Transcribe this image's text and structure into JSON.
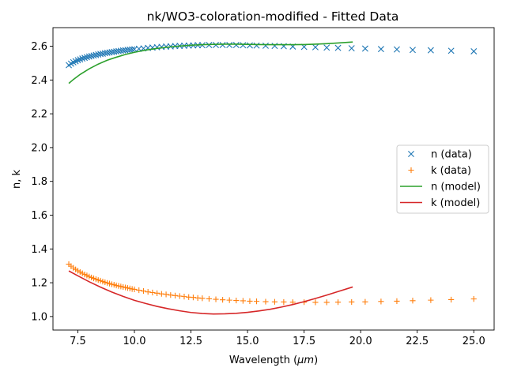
{
  "chart_data": {
    "type": "line",
    "title": "nk/WO3-coloration-modified - Fitted Data",
    "xlabel_prefix": "Wavelength (",
    "xlabel_unit": "μm",
    "xlabel_suffix": ")",
    "ylabel": "n, k",
    "xlim": [
      6.4,
      25.9
    ],
    "ylim": [
      0.92,
      2.71
    ],
    "xticks": [
      7.5,
      10.0,
      12.5,
      15.0,
      17.5,
      20.0,
      22.5,
      25.0
    ],
    "xtick_labels": [
      "7.5",
      "10.0",
      "12.5",
      "15.0",
      "17.5",
      "20.0",
      "22.5",
      "25.0"
    ],
    "yticks": [
      1.0,
      1.2,
      1.4,
      1.6,
      1.8,
      2.0,
      2.2,
      2.4,
      2.6
    ],
    "ytick_labels": [
      "1.0",
      "1.2",
      "1.4",
      "1.6",
      "1.8",
      "2.0",
      "2.2",
      "2.4",
      "2.6"
    ],
    "grid": false,
    "legend_position": "center-right",
    "series": [
      {
        "name": "n (data)",
        "style": "marker-x",
        "color": "#1f77b4",
        "x": [
          7.1,
          7.2,
          7.3,
          7.4,
          7.5,
          7.6,
          7.7,
          7.8,
          7.9,
          8.0,
          8.1,
          8.2,
          8.3,
          8.4,
          8.5,
          8.6,
          8.7,
          8.8,
          8.9,
          9.0,
          9.1,
          9.2,
          9.3,
          9.4,
          9.5,
          9.6,
          9.7,
          9.8,
          9.9,
          10.0,
          10.2,
          10.4,
          10.6,
          10.8,
          11.0,
          11.2,
          11.4,
          11.6,
          11.8,
          12.0,
          12.2,
          12.4,
          12.6,
          12.8,
          13.0,
          13.3,
          13.6,
          13.9,
          14.2,
          14.5,
          14.8,
          15.1,
          15.4,
          15.8,
          16.2,
          16.6,
          17.0,
          17.5,
          18.0,
          18.5,
          19.0,
          19.6,
          20.2,
          20.9,
          21.6,
          22.3,
          23.1,
          24.0,
          25.0
        ],
        "y": [
          2.488,
          2.497,
          2.505,
          2.511,
          2.517,
          2.522,
          2.527,
          2.531,
          2.535,
          2.539,
          2.542,
          2.545,
          2.548,
          2.551,
          2.554,
          2.556,
          2.559,
          2.561,
          2.563,
          2.565,
          2.567,
          2.569,
          2.571,
          2.573,
          2.575,
          2.576,
          2.578,
          2.579,
          2.581,
          2.582,
          2.585,
          2.587,
          2.59,
          2.592,
          2.594,
          2.596,
          2.598,
          2.599,
          2.601,
          2.602,
          2.603,
          2.604,
          2.605,
          2.606,
          2.606,
          2.607,
          2.607,
          2.607,
          2.607,
          2.607,
          2.606,
          2.605,
          2.604,
          2.603,
          2.602,
          2.6,
          2.598,
          2.596,
          2.594,
          2.592,
          2.59,
          2.588,
          2.586,
          2.583,
          2.581,
          2.578,
          2.576,
          2.573,
          2.57
        ]
      },
      {
        "name": "k (data)",
        "style": "marker-plus",
        "color": "#ff7f0e",
        "x": [
          7.1,
          7.2,
          7.3,
          7.4,
          7.5,
          7.6,
          7.7,
          7.8,
          7.9,
          8.0,
          8.1,
          8.2,
          8.3,
          8.4,
          8.5,
          8.6,
          8.7,
          8.8,
          8.9,
          9.0,
          9.1,
          9.2,
          9.3,
          9.4,
          9.5,
          9.6,
          9.7,
          9.8,
          9.9,
          10.0,
          10.2,
          10.4,
          10.6,
          10.8,
          11.0,
          11.2,
          11.4,
          11.6,
          11.8,
          12.0,
          12.2,
          12.4,
          12.6,
          12.8,
          13.0,
          13.3,
          13.6,
          13.9,
          14.2,
          14.5,
          14.8,
          15.1,
          15.4,
          15.8,
          16.2,
          16.6,
          17.0,
          17.5,
          18.0,
          18.5,
          19.0,
          19.6,
          20.2,
          20.9,
          21.6,
          22.3,
          23.1,
          24.0,
          25.0
        ],
        "y": [
          1.31,
          1.298,
          1.288,
          1.279,
          1.271,
          1.263,
          1.256,
          1.249,
          1.243,
          1.237,
          1.231,
          1.226,
          1.221,
          1.216,
          1.212,
          1.207,
          1.203,
          1.199,
          1.195,
          1.191,
          1.188,
          1.184,
          1.181,
          1.178,
          1.175,
          1.172,
          1.169,
          1.166,
          1.163,
          1.161,
          1.156,
          1.151,
          1.146,
          1.142,
          1.138,
          1.134,
          1.131,
          1.127,
          1.124,
          1.121,
          1.118,
          1.115,
          1.113,
          1.11,
          1.108,
          1.105,
          1.102,
          1.099,
          1.097,
          1.095,
          1.093,
          1.091,
          1.09,
          1.088,
          1.087,
          1.086,
          1.085,
          1.085,
          1.084,
          1.084,
          1.085,
          1.086,
          1.087,
          1.089,
          1.091,
          1.094,
          1.097,
          1.1,
          1.104
        ]
      },
      {
        "name": "n (model)",
        "style": "line",
        "color": "#2ca02c",
        "x": [
          7.1,
          7.3,
          7.6,
          8.0,
          8.4,
          8.8,
          9.2,
          9.6,
          10.0,
          10.5,
          11.0,
          11.5,
          12.0,
          12.5,
          13.0,
          13.5,
          14.0,
          14.5,
          15.0,
          15.5,
          16.0,
          16.5,
          17.0,
          17.5,
          18.0,
          18.5,
          19.0,
          19.65
        ],
        "y": [
          2.38,
          2.403,
          2.433,
          2.466,
          2.494,
          2.517,
          2.535,
          2.551,
          2.564,
          2.577,
          2.587,
          2.595,
          2.601,
          2.606,
          2.609,
          2.611,
          2.612,
          2.612,
          2.611,
          2.61,
          2.609,
          2.609,
          2.609,
          2.61,
          2.612,
          2.615,
          2.619,
          2.625
        ]
      },
      {
        "name": "k (model)",
        "style": "line",
        "color": "#d62728",
        "x": [
          7.1,
          7.5,
          8.0,
          8.5,
          9.0,
          9.5,
          10.0,
          10.5,
          11.0,
          11.5,
          12.0,
          12.5,
          13.0,
          13.5,
          14.0,
          14.5,
          15.0,
          15.5,
          16.0,
          16.5,
          17.0,
          17.5,
          18.0,
          18.5,
          19.0,
          19.65
        ],
        "y": [
          1.27,
          1.241,
          1.206,
          1.174,
          1.145,
          1.119,
          1.096,
          1.077,
          1.06,
          1.046,
          1.034,
          1.024,
          1.018,
          1.015,
          1.016,
          1.019,
          1.025,
          1.033,
          1.043,
          1.056,
          1.071,
          1.088,
          1.107,
          1.127,
          1.148,
          1.175
        ]
      }
    ]
  }
}
